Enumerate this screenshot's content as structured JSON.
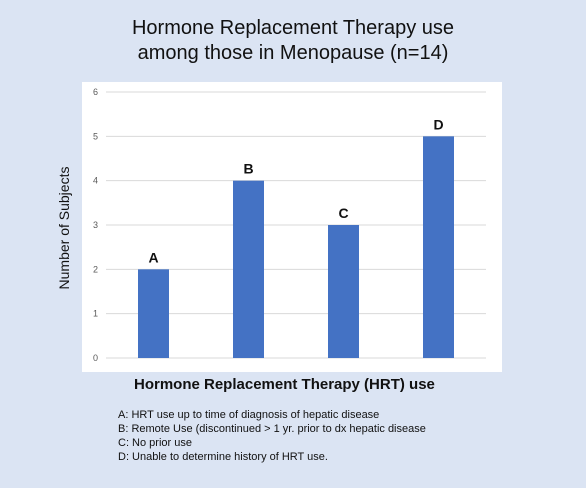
{
  "title_lines": [
    "Hormone Replacement Therapy use",
    "among those in Menopause (n=14)"
  ],
  "notes": [
    "A: HRT use up to time of diagnosis of hepatic disease",
    "B: Remote Use (discontinued > 1 yr. prior to dx hepatic disease",
    "C: No prior use",
    "D: Unable to determine history of HRT use."
  ],
  "chart_data": {
    "type": "bar",
    "categories": [
      "A",
      "B",
      "C",
      "D"
    ],
    "values": [
      2,
      4,
      3,
      5
    ],
    "data_labels": [
      "A",
      "B",
      "C",
      "D"
    ],
    "xlabel": "Hormone Replacement Therapy (HRT) use",
    "ylabel": "Number of Subjects",
    "ylim": [
      0,
      6
    ],
    "yticks": [
      "0",
      "1",
      "2",
      "3",
      "4",
      "5",
      "6"
    ],
    "grid": true,
    "bar_color": "#4472c4",
    "grid_color": "#d9d9d9"
  }
}
